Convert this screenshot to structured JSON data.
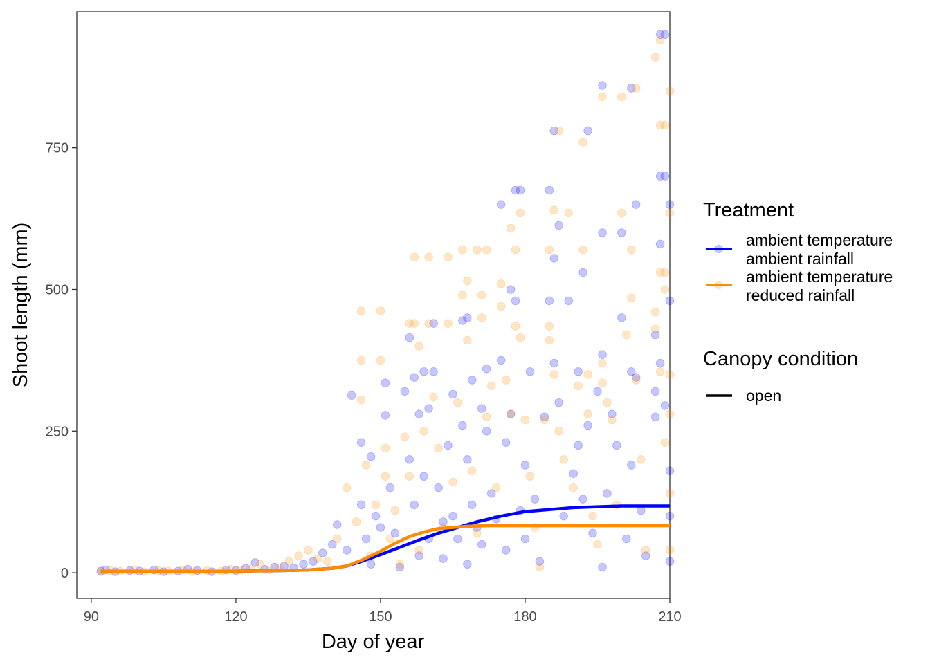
{
  "chart_data": {
    "type": "scatter",
    "xlabel": "Day of year",
    "ylabel": "Shoot length (mm)",
    "xlim": [
      87,
      210
    ],
    "ylim": [
      -45,
      990
    ],
    "x_ticks": [
      90,
      120,
      150,
      180,
      210
    ],
    "x_tick_labels": [
      "90",
      "120",
      "150",
      "180",
      "210"
    ],
    "y_ticks": [
      0,
      250,
      500,
      750
    ],
    "y_tick_labels": [
      "0",
      "250",
      "500",
      "750"
    ],
    "grid": false,
    "legend_placement": "right",
    "legends": [
      {
        "title": "Treatment",
        "entries": [
          {
            "line1": "ambient temperature",
            "line2": "ambient rainfall",
            "color": "#0000ff"
          },
          {
            "line1": "ambient temperature",
            "line2": "reduced rainfall",
            "color": "#ff8c00"
          }
        ]
      },
      {
        "title": "Canopy condition",
        "entries": [
          {
            "line1": "open",
            "line2": "",
            "color": "#000000"
          }
        ]
      }
    ],
    "series": [
      {
        "color": "#0000ff",
        "point_opacity": 0.22,
        "fit_x": [
          92,
          100,
          110,
          120,
          130,
          135,
          140,
          143,
          146,
          150,
          154,
          158,
          162,
          166,
          170,
          175,
          180,
          190,
          200,
          210
        ],
        "fit_y": [
          3,
          3,
          3,
          3,
          4,
          5,
          8,
          12,
          20,
          32,
          45,
          58,
          70,
          80,
          90,
          100,
          108,
          115,
          118,
          118
        ],
        "points": [
          [
            92,
            3
          ],
          [
            93,
            5
          ],
          [
            95,
            2
          ],
          [
            98,
            4
          ],
          [
            100,
            3
          ],
          [
            103,
            5
          ],
          [
            105,
            2
          ],
          [
            108,
            3
          ],
          [
            110,
            6
          ],
          [
            112,
            4
          ],
          [
            115,
            2
          ],
          [
            118,
            5
          ],
          [
            120,
            4
          ],
          [
            122,
            8
          ],
          [
            124,
            18
          ],
          [
            126,
            6
          ],
          [
            128,
            10
          ],
          [
            130,
            12
          ],
          [
            132,
            9
          ],
          [
            134,
            15
          ],
          [
            136,
            20
          ],
          [
            138,
            35
          ],
          [
            140,
            50
          ],
          [
            141,
            85
          ],
          [
            143,
            40
          ],
          [
            144,
            313
          ],
          [
            146,
            230
          ],
          [
            146,
            120
          ],
          [
            147,
            60
          ],
          [
            148,
            205
          ],
          [
            148,
            15
          ],
          [
            149,
            100
          ],
          [
            150,
            80
          ],
          [
            151,
            335
          ],
          [
            151,
            278
          ],
          [
            152,
            150
          ],
          [
            153,
            70
          ],
          [
            154,
            10
          ],
          [
            155,
            320
          ],
          [
            156,
            415
          ],
          [
            156,
            200
          ],
          [
            157,
            120
          ],
          [
            157,
            345
          ],
          [
            158,
            280
          ],
          [
            158,
            30
          ],
          [
            159,
            355
          ],
          [
            159,
            170
          ],
          [
            160,
            290
          ],
          [
            160,
            60
          ],
          [
            161,
            440
          ],
          [
            161,
            355
          ],
          [
            162,
            150
          ],
          [
            163,
            90
          ],
          [
            163,
            25
          ],
          [
            164,
            225
          ],
          [
            165,
            315
          ],
          [
            165,
            100
          ],
          [
            166,
            60
          ],
          [
            167,
            445
          ],
          [
            167,
            260
          ],
          [
            168,
            450
          ],
          [
            168,
            200
          ],
          [
            168,
            15
          ],
          [
            169,
            340
          ],
          [
            169,
            120
          ],
          [
            170,
            80
          ],
          [
            171,
            290
          ],
          [
            171,
            50
          ],
          [
            172,
            360
          ],
          [
            172,
            250
          ],
          [
            173,
            140
          ],
          [
            174,
            95
          ],
          [
            175,
            650
          ],
          [
            175,
            375
          ],
          [
            176,
            230
          ],
          [
            176,
            40
          ],
          [
            177,
            500
          ],
          [
            177,
            280
          ],
          [
            178,
            675
          ],
          [
            178,
            480
          ],
          [
            179,
            675
          ],
          [
            179,
            110
          ],
          [
            180,
            190
          ],
          [
            180,
            60
          ],
          [
            181,
            355
          ],
          [
            182,
            130
          ],
          [
            183,
            20
          ],
          [
            184,
            275
          ],
          [
            185,
            675
          ],
          [
            185,
            480
          ],
          [
            186,
            780
          ],
          [
            186,
            555
          ],
          [
            186,
            370
          ],
          [
            187,
            613
          ],
          [
            187,
            300
          ],
          [
            188,
            100
          ],
          [
            189,
            480
          ],
          [
            190,
            175
          ],
          [
            191,
            355
          ],
          [
            191,
            225
          ],
          [
            192,
            530
          ],
          [
            192,
            130
          ],
          [
            193,
            780
          ],
          [
            193,
            260
          ],
          [
            194,
            70
          ],
          [
            195,
            320
          ],
          [
            196,
            860
          ],
          [
            196,
            600
          ],
          [
            196,
            385
          ],
          [
            196,
            10
          ],
          [
            197,
            140
          ],
          [
            198,
            280
          ],
          [
            199,
            225
          ],
          [
            200,
            600
          ],
          [
            200,
            450
          ],
          [
            201,
            60
          ],
          [
            202,
            855
          ],
          [
            202,
            355
          ],
          [
            202,
            190
          ],
          [
            203,
            650
          ],
          [
            203,
            345
          ],
          [
            204,
            110
          ],
          [
            205,
            30
          ],
          [
            207,
            420
          ],
          [
            207,
            320
          ],
          [
            207,
            275
          ],
          [
            208,
            950
          ],
          [
            208,
            700
          ],
          [
            208,
            580
          ],
          [
            208,
            370
          ],
          [
            209,
            950
          ],
          [
            209,
            700
          ],
          [
            209,
            295
          ],
          [
            210,
            650
          ],
          [
            210,
            480
          ],
          [
            210,
            180
          ],
          [
            210,
            100
          ],
          [
            210,
            20
          ]
        ]
      },
      {
        "color": "#ff8c00",
        "point_opacity": 0.22,
        "fit_x": [
          92,
          100,
          110,
          120,
          130,
          135,
          140,
          143,
          146,
          150,
          153,
          156,
          159,
          162,
          165,
          168,
          172,
          180,
          190,
          200,
          210
        ],
        "fit_y": [
          3,
          3,
          3,
          3,
          4,
          5,
          8,
          12,
          22,
          38,
          52,
          64,
          72,
          78,
          80,
          82,
          83,
          83,
          83,
          83,
          83
        ],
        "points": [
          [
            92,
            2
          ],
          [
            94,
            4
          ],
          [
            96,
            3
          ],
          [
            99,
            5
          ],
          [
            101,
            2
          ],
          [
            104,
            4
          ],
          [
            106,
            3
          ],
          [
            109,
            5
          ],
          [
            111,
            2
          ],
          [
            114,
            4
          ],
          [
            117,
            3
          ],
          [
            119,
            6
          ],
          [
            121,
            5
          ],
          [
            123,
            7
          ],
          [
            125,
            15
          ],
          [
            127,
            5
          ],
          [
            129,
            9
          ],
          [
            131,
            20
          ],
          [
            133,
            30
          ],
          [
            135,
            40
          ],
          [
            137,
            25
          ],
          [
            139,
            20
          ],
          [
            141,
            60
          ],
          [
            143,
            150
          ],
          [
            145,
            90
          ],
          [
            146,
            462
          ],
          [
            146,
            375
          ],
          [
            146,
            305
          ],
          [
            147,
            190
          ],
          [
            148,
            30
          ],
          [
            149,
            120
          ],
          [
            150,
            462
          ],
          [
            150,
            375
          ],
          [
            151,
            220
          ],
          [
            151,
            170
          ],
          [
            152,
            60
          ],
          [
            153,
            110
          ],
          [
            154,
            15
          ],
          [
            155,
            240
          ],
          [
            156,
            440
          ],
          [
            156,
            170
          ],
          [
            157,
            557
          ],
          [
            157,
            440
          ],
          [
            158,
            400
          ],
          [
            158,
            40
          ],
          [
            159,
            250
          ],
          [
            160,
            557
          ],
          [
            160,
            440
          ],
          [
            161,
            310
          ],
          [
            162,
            220
          ],
          [
            163,
            80
          ],
          [
            164,
            557
          ],
          [
            164,
            440
          ],
          [
            165,
            160
          ],
          [
            166,
            300
          ],
          [
            167,
            570
          ],
          [
            167,
            490
          ],
          [
            168,
            515
          ],
          [
            168,
            410
          ],
          [
            169,
            180
          ],
          [
            170,
            570
          ],
          [
            170,
            70
          ],
          [
            171,
            490
          ],
          [
            171,
            450
          ],
          [
            172,
            570
          ],
          [
            172,
            275
          ],
          [
            173,
            330
          ],
          [
            174,
            150
          ],
          [
            175,
            510
          ],
          [
            175,
            470
          ],
          [
            176,
            340
          ],
          [
            177,
            608
          ],
          [
            177,
            280
          ],
          [
            178,
            570
          ],
          [
            178,
            435
          ],
          [
            179,
            635
          ],
          [
            179,
            415
          ],
          [
            180,
            270
          ],
          [
            181,
            170
          ],
          [
            182,
            80
          ],
          [
            183,
            10
          ],
          [
            184,
            270
          ],
          [
            185,
            570
          ],
          [
            185,
            435
          ],
          [
            185,
            410
          ],
          [
            186,
            640
          ],
          [
            186,
            350
          ],
          [
            187,
            780
          ],
          [
            187,
            250
          ],
          [
            188,
            200
          ],
          [
            189,
            635
          ],
          [
            190,
            150
          ],
          [
            191,
            330
          ],
          [
            192,
            760
          ],
          [
            192,
            570
          ],
          [
            193,
            350
          ],
          [
            193,
            280
          ],
          [
            194,
            100
          ],
          [
            195,
            50
          ],
          [
            196,
            840
          ],
          [
            196,
            370
          ],
          [
            196,
            335
          ],
          [
            197,
            300
          ],
          [
            198,
            270
          ],
          [
            199,
            120
          ],
          [
            200,
            840
          ],
          [
            200,
            635
          ],
          [
            201,
            420
          ],
          [
            202,
            570
          ],
          [
            202,
            485
          ],
          [
            203,
            855
          ],
          [
            203,
            340
          ],
          [
            204,
            200
          ],
          [
            205,
            40
          ],
          [
            207,
            910
          ],
          [
            207,
            460
          ],
          [
            207,
            430
          ],
          [
            208,
            790
          ],
          [
            208,
            530
          ],
          [
            208,
            355
          ],
          [
            209,
            790
          ],
          [
            209,
            530
          ],
          [
            209,
            500
          ],
          [
            209,
            230
          ],
          [
            210,
            850
          ],
          [
            210,
            635
          ],
          [
            210,
            350
          ],
          [
            210,
            280
          ],
          [
            210,
            140
          ],
          [
            210,
            40
          ],
          [
            208,
            940
          ]
        ]
      }
    ]
  }
}
